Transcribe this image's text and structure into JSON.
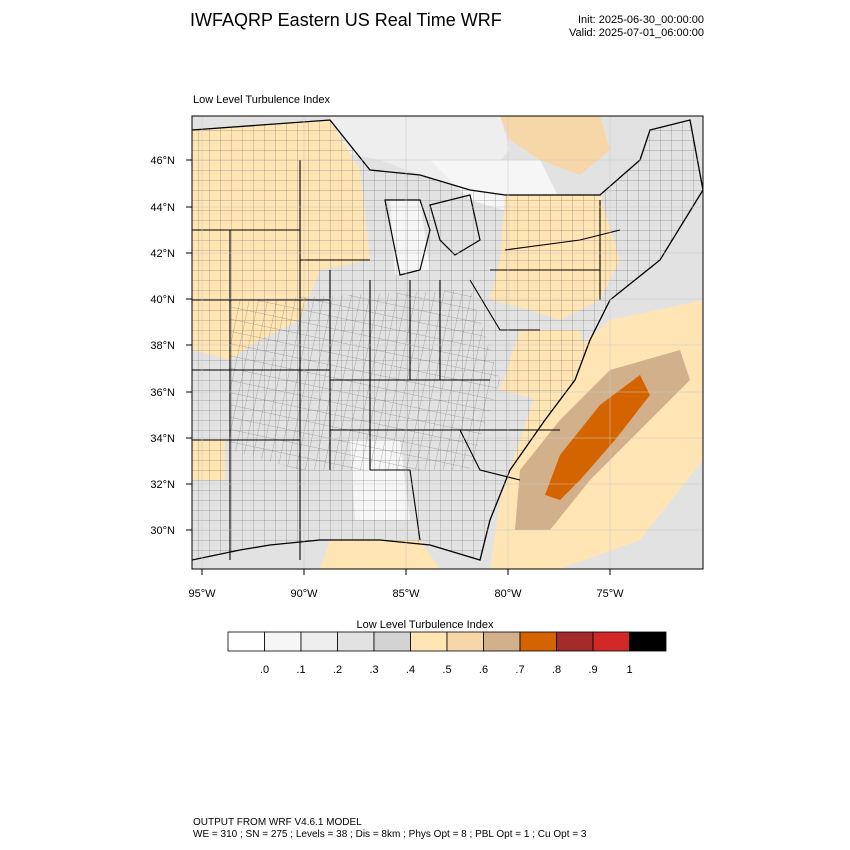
{
  "header": {
    "title": "IWFAQRP Eastern US Real Time WRF",
    "init": "Init: 2025-06-30_00:00:00",
    "valid": "Valid: 2025-07-01_06:00:00"
  },
  "map": {
    "subtitle": "Low Level Turbulence Index",
    "lat_labels": [
      "46°N",
      "44°N",
      "42°N",
      "40°N",
      "38°N",
      "36°N",
      "34°N",
      "32°N",
      "30°N"
    ],
    "lon_labels": [
      "95°W",
      "90°W",
      "85°W",
      "80°W",
      "75°W"
    ],
    "lat_range": [
      28.5,
      47.8
    ],
    "lon_range": [
      -95.2,
      -70.5
    ]
  },
  "colorbar": {
    "title": "Low Level Turbulence Index",
    "colors": [
      "#ffffff",
      "#f6f6f6",
      "#eeeeee",
      "#e2e2e2",
      "#d3d3d3",
      "#ffe4b4",
      "#f7d7a8",
      "#d2b08c",
      "#d46400",
      "#a52a2a",
      "#d22828",
      "#000000"
    ],
    "tick_labels": [
      ".0",
      ".1",
      ".2",
      ".3",
      ".4",
      ".5",
      ".6",
      ".7",
      ".8",
      ".9",
      "1"
    ]
  },
  "footer": {
    "line1": "OUTPUT FROM WRF V4.6.1 MODEL",
    "line2": "WE = 310 ; SN = 275 ; Levels = 38 ; Dis = 8km ; Phys Opt = 8 ; PBL Opt = 1 ; Cu Opt = 3"
  }
}
